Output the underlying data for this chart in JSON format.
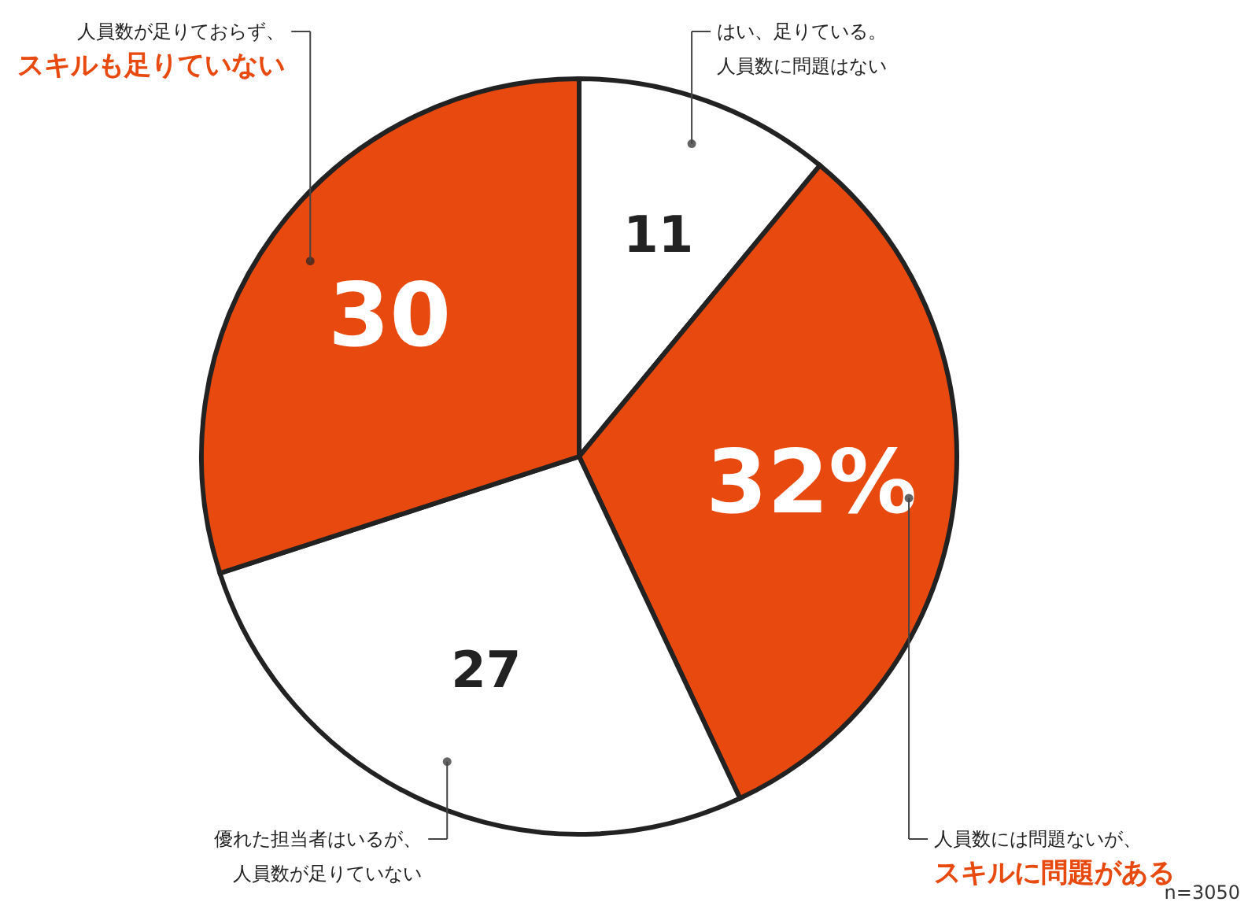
{
  "chart_data": {
    "type": "pie",
    "categories": [
      "はい、足りている。人員数に問題はない",
      "人員数には問題ないが、スキルに問題がある",
      "優れた担当者はいるが、人員数が足りていない",
      "人員数が足りておらず、スキルも足りていない"
    ],
    "values": [
      11,
      32,
      27,
      30
    ],
    "colors": [
      "#ffffff",
      "#e8490f",
      "#ffffff",
      "#e8490f"
    ],
    "value_labels": [
      "11",
      "32%",
      "27",
      "30"
    ],
    "annotations": [
      "n=3050"
    ]
  }
}
